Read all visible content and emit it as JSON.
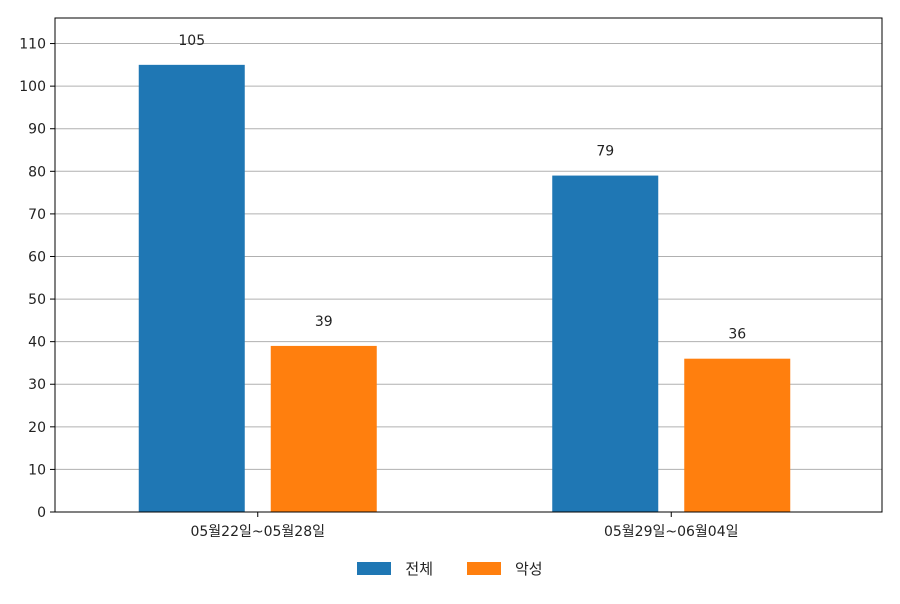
{
  "chart_data": {
    "type": "bar",
    "categories": [
      "05월22일~05월28일",
      "05월29일~06월04일"
    ],
    "series": [
      {
        "name": "전체",
        "values": [
          105,
          79
        ],
        "color": "#1f77b4"
      },
      {
        "name": "악성",
        "values": [
          39,
          36
        ],
        "color": "#ff7f0e"
      }
    ],
    "ylim": [
      0,
      116
    ],
    "yticks": [
      0,
      10,
      20,
      30,
      40,
      50,
      60,
      70,
      80,
      90,
      100,
      110
    ],
    "grid": true,
    "data_labels": true,
    "legend_position": "bottom-center"
  }
}
